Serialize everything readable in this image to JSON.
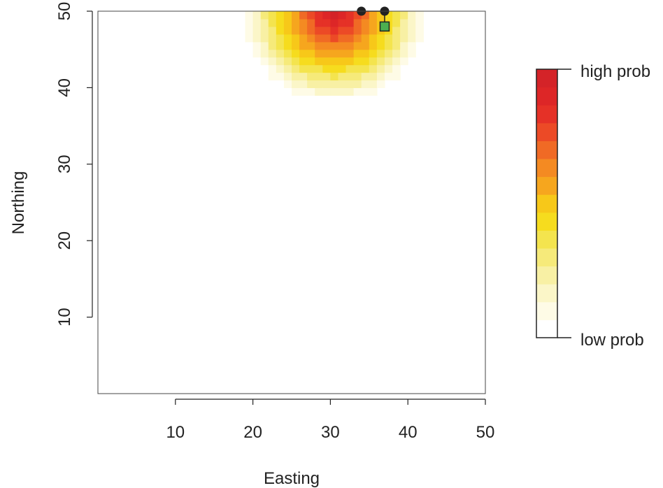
{
  "chart_data": {
    "type": "heatmap",
    "xlabel": "Easting",
    "ylabel": "Northing",
    "xlim": [
      0,
      50
    ],
    "ylim": [
      0,
      50
    ],
    "x_ticks": [
      10,
      20,
      30,
      40,
      50
    ],
    "y_ticks": [
      10,
      20,
      30,
      40,
      50
    ],
    "heatmap": {
      "description_free": true,
      "center": [
        30.5,
        49.5
      ],
      "max_radius": 11.5,
      "y_extent_min": 39,
      "colors_low_to_high": [
        "#ffffff",
        "#fefbe6",
        "#fbf6c8",
        "#f8f0a4",
        "#f6ea7a",
        "#f4e44e",
        "#f6dc1e",
        "#f7c819",
        "#f6a61e",
        "#f48a22",
        "#f06a25",
        "#ec4a26",
        "#e53127",
        "#dd2627",
        "#d42328"
      ]
    },
    "track_points": [
      {
        "x": 34,
        "y": 50,
        "marker": "circle",
        "color": "#222222"
      },
      {
        "x": 37,
        "y": 50,
        "marker": "circle",
        "color": "#222222"
      },
      {
        "x": 37,
        "y": 48,
        "marker": "square",
        "color": "#4caf50"
      }
    ],
    "legend": {
      "high_label": "high prob",
      "low_label": "low prob"
    }
  }
}
